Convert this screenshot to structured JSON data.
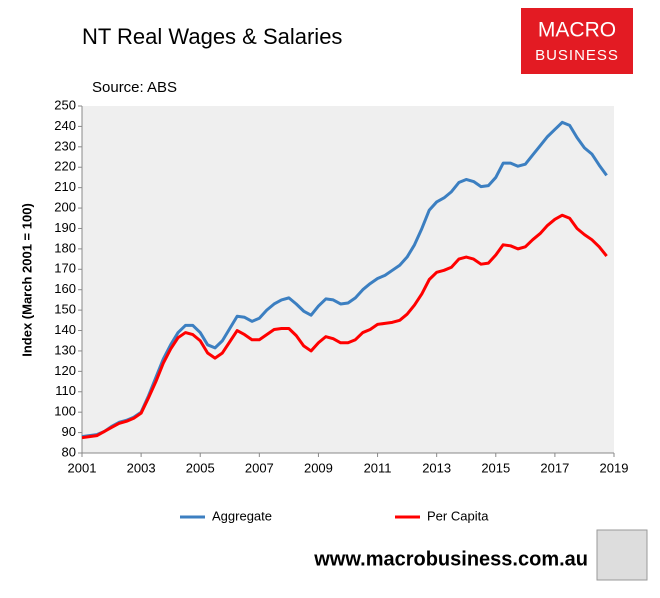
{
  "chart_data": {
    "type": "line",
    "title": "NT Real Wages & Salaries",
    "subtitle": "Source: ABS",
    "y_label": "Index (March 2001 = 100)",
    "logo": {
      "line1": "MACRO",
      "line2": "BUSINESS"
    },
    "footer": "www.macrobusiness.com.au",
    "x": [
      2001,
      2001.25,
      2001.5,
      2001.75,
      2002,
      2002.25,
      2002.5,
      2002.75,
      2003,
      2003.25,
      2003.5,
      2003.75,
      2004,
      2004.25,
      2004.5,
      2004.75,
      2005,
      2005.25,
      2005.5,
      2005.75,
      2006,
      2006.25,
      2006.5,
      2006.75,
      2007,
      2007.25,
      2007.5,
      2007.75,
      2008,
      2008.25,
      2008.5,
      2008.75,
      2009,
      2009.25,
      2009.5,
      2009.75,
      2010,
      2010.25,
      2010.5,
      2010.75,
      2011,
      2011.25,
      2011.5,
      2011.75,
      2012,
      2012.25,
      2012.5,
      2012.75,
      2013,
      2013.25,
      2013.5,
      2013.75,
      2014,
      2014.25,
      2014.5,
      2014.75,
      2015,
      2015.25,
      2015.5,
      2015.75,
      2016,
      2016.25,
      2016.5,
      2016.75,
      2017,
      2017.25,
      2017.5,
      2017.75,
      2018,
      2018.25,
      2018.5,
      2018.75
    ],
    "series": [
      {
        "name": "Aggregate",
        "color": "#3c7fc1",
        "values": [
          88,
          88.5,
          89,
          90.5,
          93,
          95,
          96,
          97.5,
          100,
          108,
          117,
          126,
          133,
          139,
          142.5,
          142.5,
          139,
          133,
          131.5,
          135,
          141,
          147,
          146.5,
          144.5,
          146,
          150,
          153,
          155,
          156,
          153,
          149.5,
          147.5,
          152,
          155.5,
          155,
          153,
          153.5,
          156,
          160,
          163,
          165.5,
          167,
          169.5,
          172,
          176,
          182,
          190,
          199,
          203,
          205,
          208,
          212.5,
          214,
          213,
          210.5,
          211,
          215,
          222,
          222,
          220.5,
          221.5,
          226,
          230.5,
          235,
          238.5,
          242,
          240.5,
          234.5,
          229.5,
          226.5,
          221,
          216
        ]
      },
      {
        "name": "Per Capita",
        "color": "#ff0000",
        "values": [
          87.5,
          88,
          88.5,
          90.5,
          92.5,
          94.5,
          95.5,
          97,
          99.5,
          107,
          115,
          124,
          131,
          136.5,
          139,
          138,
          135,
          129,
          126.5,
          129,
          134.5,
          140,
          138,
          135.5,
          135.5,
          138,
          140.5,
          141,
          141,
          137.5,
          132.5,
          130,
          134,
          137,
          136,
          134,
          134,
          135.5,
          139,
          140.5,
          143,
          143.5,
          144,
          145,
          148,
          152.5,
          158,
          165,
          168.5,
          169.5,
          171,
          175,
          176,
          175,
          172.5,
          173,
          177,
          182,
          181.5,
          180,
          181,
          184.5,
          187.5,
          191.5,
          194.5,
          196.5,
          195,
          190,
          187,
          184.5,
          181,
          176.5
        ]
      }
    ],
    "xlim": [
      2001,
      2019
    ],
    "xticks": [
      2001,
      2003,
      2005,
      2007,
      2009,
      2011,
      2013,
      2015,
      2017,
      2019
    ],
    "ylim": [
      80,
      250
    ],
    "yticks": [
      80,
      90,
      100,
      110,
      120,
      130,
      140,
      150,
      160,
      170,
      180,
      190,
      200,
      210,
      220,
      230,
      240,
      250
    ],
    "grid": false,
    "legend": "bottom"
  }
}
